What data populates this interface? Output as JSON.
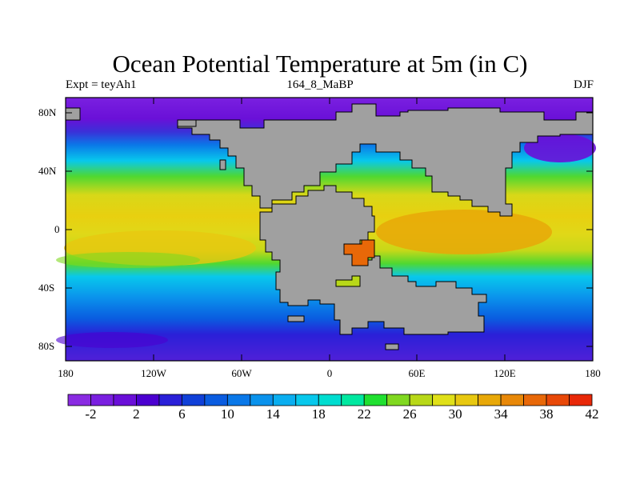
{
  "title": "Ocean Potential Temperature at 5m (in C)",
  "subtitle_left": "Expt = teyAh1",
  "subtitle_center": "164_8_MaBP",
  "subtitle_right": "DJF",
  "lat_labels": [
    "80N",
    "40N",
    "0",
    "40S",
    "80S"
  ],
  "lon_labels": [
    "180",
    "120W",
    "60W",
    "0",
    "60E",
    "120E",
    "180"
  ],
  "colorbar": {
    "labels": [
      "-2",
      "2",
      "6",
      "10",
      "14",
      "18",
      "22",
      "26",
      "30",
      "34",
      "38",
      "42"
    ],
    "colors": [
      "#8a2be2",
      "#7a1fe0",
      "#6a0fd8",
      "#4b00d0",
      "#2a20d8",
      "#1040d8",
      "#0a5ce0",
      "#0a78e8",
      "#0a92ec",
      "#0aaef0",
      "#08c8ec",
      "#00ddd0",
      "#00e8a0",
      "#20e030",
      "#80d820",
      "#b8d818",
      "#e0e018",
      "#e8c810",
      "#e8a808",
      "#e88808",
      "#e86808",
      "#e84808",
      "#e82808"
    ]
  },
  "colors": {
    "land": "#a0a0a0",
    "arctic": "#7a20e0",
    "background": "#ffffff"
  }
}
